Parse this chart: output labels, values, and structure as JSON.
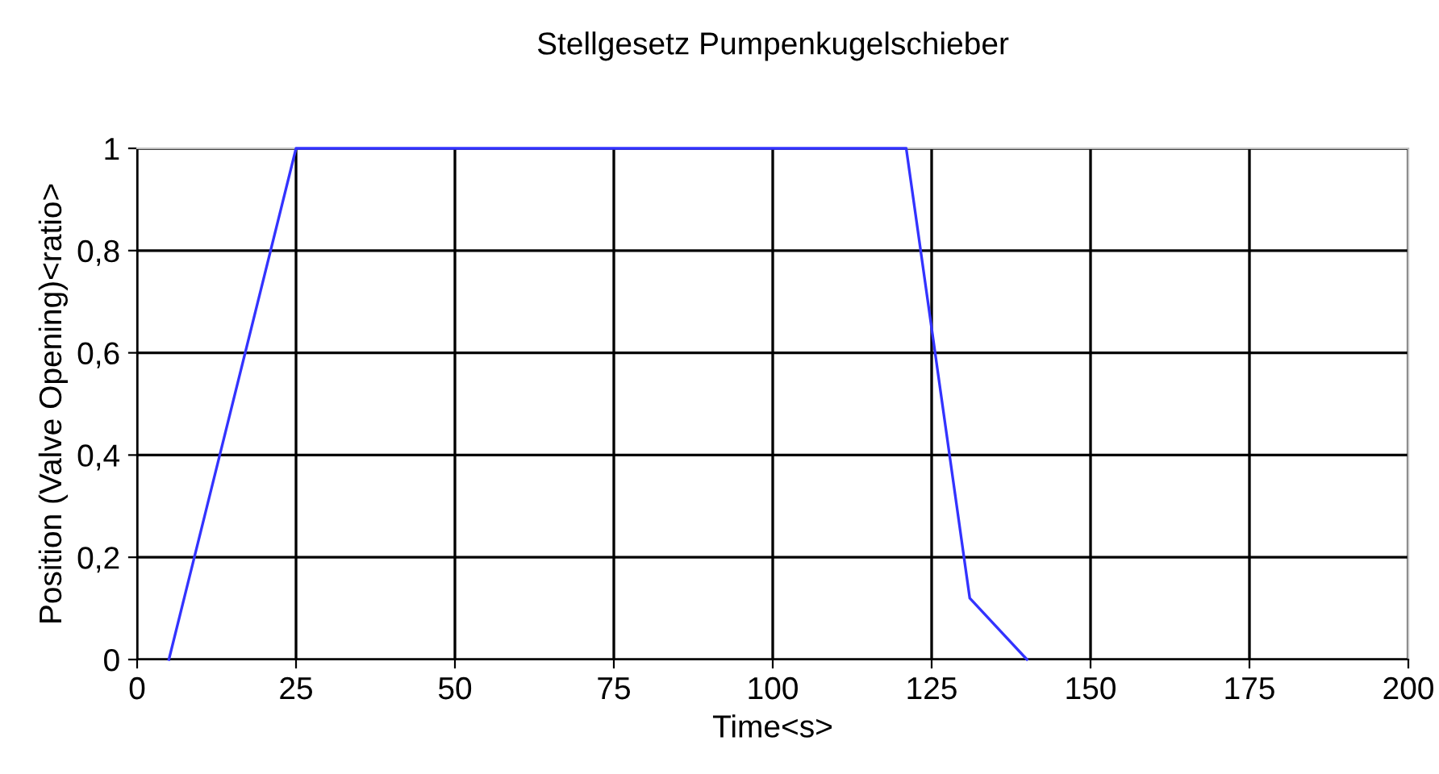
{
  "chart_data": {
    "type": "line",
    "title": "Stellgesetz Pumpenkugelschieber",
    "xlabel": "Time<s>",
    "ylabel": "Position (Valve Opening)<ratio>",
    "series": [
      {
        "color": "#3333ff",
        "x": [
          5,
          25,
          121,
          131,
          140
        ],
        "values": [
          0,
          1,
          1,
          0.12,
          0
        ]
      }
    ],
    "xlim": [
      0,
      200
    ],
    "xticks": [
      0,
      25,
      50,
      75,
      100,
      125,
      150,
      175,
      200
    ],
    "ylim": [
      0,
      1
    ],
    "yticks": [
      0,
      {
        "value": 0.2,
        "label": "0,2"
      },
      {
        "value": 0.4,
        "label": "0,4"
      },
      {
        "value": 0.6,
        "label": "0,6"
      },
      {
        "value": 0.8,
        "label": "0,8"
      },
      1
    ],
    "grid": true,
    "legend": false,
    "marker": "none",
    "line_style": "solid"
  }
}
